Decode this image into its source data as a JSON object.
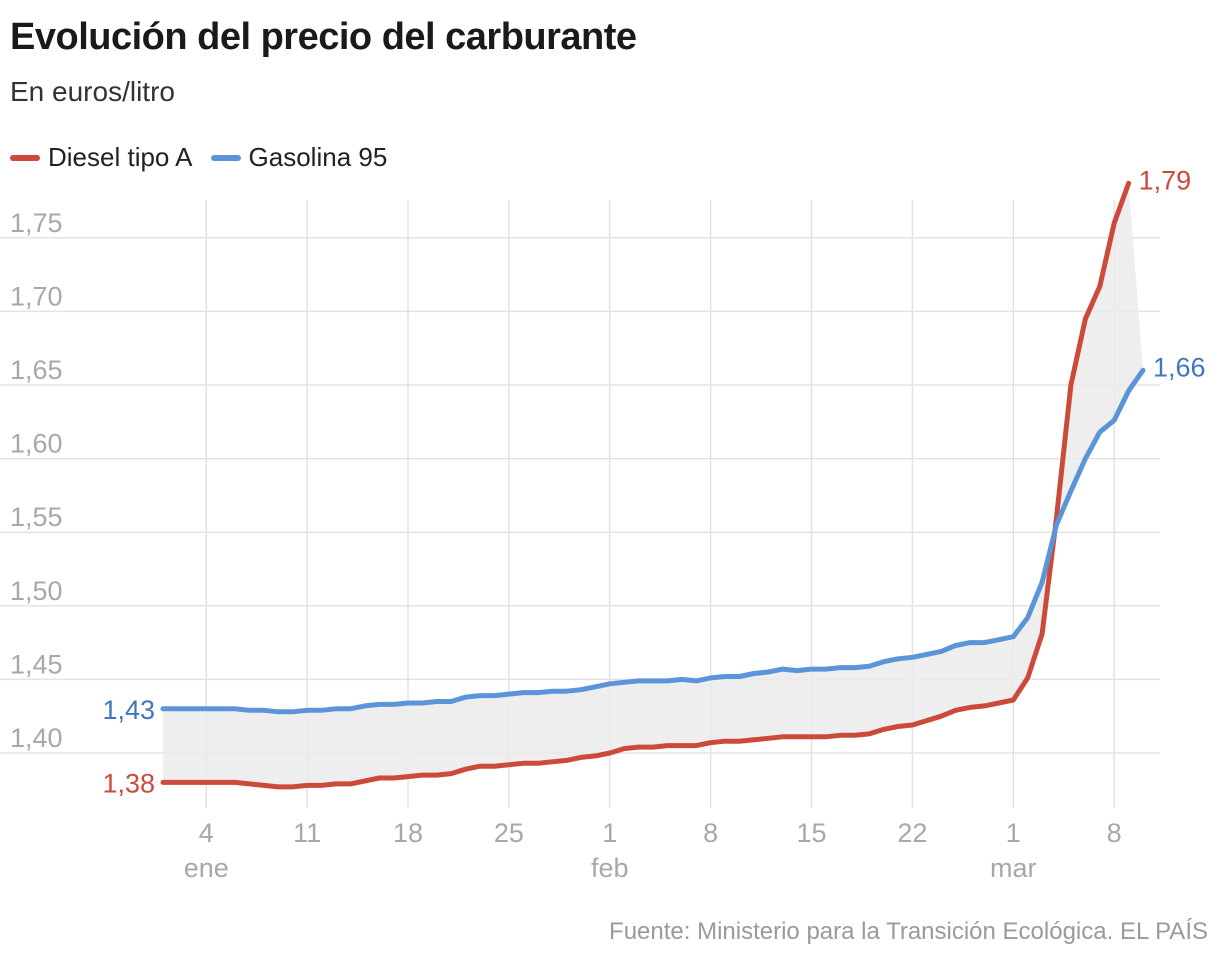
{
  "title": "Evolución del precio del carburante",
  "subtitle": "En euros/litro",
  "source": "Fuente: Ministerio para la Transición Ecológica. EL PAÍS",
  "chart_data": {
    "type": "line",
    "x_start": "2022-01-01",
    "x_end": "2022-03-10",
    "ylim": [
      1.37,
      1.795
    ],
    "y_ticks": [
      {
        "value": 1.4,
        "label": "1,40"
      },
      {
        "value": 1.45,
        "label": "1,45"
      },
      {
        "value": 1.5,
        "label": "1,50"
      },
      {
        "value": 1.55,
        "label": "1,55"
      },
      {
        "value": 1.6,
        "label": "1,60"
      },
      {
        "value": 1.65,
        "label": "1,65"
      },
      {
        "value": 1.7,
        "label": "1,70"
      },
      {
        "value": 1.75,
        "label": "1,75"
      }
    ],
    "x_ticks": [
      {
        "date": "2022-01-04",
        "label": "4",
        "month": "ene"
      },
      {
        "date": "2022-01-11",
        "label": "11"
      },
      {
        "date": "2022-01-18",
        "label": "18"
      },
      {
        "date": "2022-01-25",
        "label": "25"
      },
      {
        "date": "2022-02-01",
        "label": "1",
        "month": "feb"
      },
      {
        "date": "2022-02-08",
        "label": "8"
      },
      {
        "date": "2022-02-15",
        "label": "15"
      },
      {
        "date": "2022-02-22",
        "label": "22"
      },
      {
        "date": "2022-03-01",
        "label": "1",
        "month": "mar"
      },
      {
        "date": "2022-03-08",
        "label": "8"
      }
    ],
    "area_between_series": true,
    "grid": true,
    "legend_position": "top-left",
    "series": [
      {
        "name": "Diesel tipo A",
        "color": "#cc4a3c",
        "label_color": "#cc4a3c",
        "start_label": "1,38",
        "end_label": "1,79",
        "points": [
          [
            "2022-01-01",
            1.38
          ],
          [
            "2022-01-06",
            1.38
          ],
          [
            "2022-01-07",
            1.379
          ],
          [
            "2022-01-08",
            1.378
          ],
          [
            "2022-01-09",
            1.377
          ],
          [
            "2022-01-10",
            1.377
          ],
          [
            "2022-01-11",
            1.378
          ],
          [
            "2022-01-12",
            1.378
          ],
          [
            "2022-01-13",
            1.379
          ],
          [
            "2022-01-14",
            1.379
          ],
          [
            "2022-01-15",
            1.381
          ],
          [
            "2022-01-16",
            1.383
          ],
          [
            "2022-01-17",
            1.383
          ],
          [
            "2022-01-18",
            1.384
          ],
          [
            "2022-01-19",
            1.385
          ],
          [
            "2022-01-20",
            1.385
          ],
          [
            "2022-01-21",
            1.386
          ],
          [
            "2022-01-22",
            1.389
          ],
          [
            "2022-01-23",
            1.391
          ],
          [
            "2022-01-24",
            1.391
          ],
          [
            "2022-01-25",
            1.392
          ],
          [
            "2022-01-26",
            1.393
          ],
          [
            "2022-01-27",
            1.393
          ],
          [
            "2022-01-28",
            1.394
          ],
          [
            "2022-01-29",
            1.395
          ],
          [
            "2022-01-30",
            1.397
          ],
          [
            "2022-01-31",
            1.398
          ],
          [
            "2022-02-01",
            1.4
          ],
          [
            "2022-02-02",
            1.403
          ],
          [
            "2022-02-03",
            1.404
          ],
          [
            "2022-02-04",
            1.404
          ],
          [
            "2022-02-05",
            1.405
          ],
          [
            "2022-02-06",
            1.405
          ],
          [
            "2022-02-07",
            1.405
          ],
          [
            "2022-02-08",
            1.407
          ],
          [
            "2022-02-09",
            1.408
          ],
          [
            "2022-02-10",
            1.408
          ],
          [
            "2022-02-11",
            1.409
          ],
          [
            "2022-02-12",
            1.41
          ],
          [
            "2022-02-13",
            1.411
          ],
          [
            "2022-02-14",
            1.411
          ],
          [
            "2022-02-15",
            1.411
          ],
          [
            "2022-02-16",
            1.411
          ],
          [
            "2022-02-17",
            1.412
          ],
          [
            "2022-02-18",
            1.412
          ],
          [
            "2022-02-19",
            1.413
          ],
          [
            "2022-02-20",
            1.416
          ],
          [
            "2022-02-21",
            1.418
          ],
          [
            "2022-02-22",
            1.419
          ],
          [
            "2022-02-23",
            1.422
          ],
          [
            "2022-02-24",
            1.425
          ],
          [
            "2022-02-25",
            1.429
          ],
          [
            "2022-02-26",
            1.431
          ],
          [
            "2022-02-27",
            1.432
          ],
          [
            "2022-02-28",
            1.434
          ],
          [
            "2022-03-01",
            1.436
          ],
          [
            "2022-03-02",
            1.451
          ],
          [
            "2022-03-03",
            1.481
          ],
          [
            "2022-03-04",
            1.56
          ],
          [
            "2022-03-05",
            1.65
          ],
          [
            "2022-03-06",
            1.695
          ],
          [
            "2022-03-07",
            1.717
          ],
          [
            "2022-03-08",
            1.76
          ],
          [
            "2022-03-09",
            1.787
          ]
        ]
      },
      {
        "name": "Gasolina 95",
        "color": "#5b95d8",
        "label_color": "#3f76bf",
        "start_label": "1,43",
        "end_label": "1,66",
        "points": [
          [
            "2022-01-01",
            1.43
          ],
          [
            "2022-01-06",
            1.43
          ],
          [
            "2022-01-07",
            1.429
          ],
          [
            "2022-01-08",
            1.429
          ],
          [
            "2022-01-09",
            1.428
          ],
          [
            "2022-01-10",
            1.428
          ],
          [
            "2022-01-11",
            1.429
          ],
          [
            "2022-01-12",
            1.429
          ],
          [
            "2022-01-13",
            1.43
          ],
          [
            "2022-01-14",
            1.43
          ],
          [
            "2022-01-15",
            1.432
          ],
          [
            "2022-01-16",
            1.433
          ],
          [
            "2022-01-17",
            1.433
          ],
          [
            "2022-01-18",
            1.434
          ],
          [
            "2022-01-19",
            1.434
          ],
          [
            "2022-01-20",
            1.435
          ],
          [
            "2022-01-21",
            1.435
          ],
          [
            "2022-01-22",
            1.438
          ],
          [
            "2022-01-23",
            1.439
          ],
          [
            "2022-01-24",
            1.439
          ],
          [
            "2022-01-25",
            1.44
          ],
          [
            "2022-01-26",
            1.441
          ],
          [
            "2022-01-27",
            1.441
          ],
          [
            "2022-01-28",
            1.442
          ],
          [
            "2022-01-29",
            1.442
          ],
          [
            "2022-01-30",
            1.443
          ],
          [
            "2022-01-31",
            1.445
          ],
          [
            "2022-02-01",
            1.447
          ],
          [
            "2022-02-02",
            1.448
          ],
          [
            "2022-02-03",
            1.449
          ],
          [
            "2022-02-04",
            1.449
          ],
          [
            "2022-02-05",
            1.449
          ],
          [
            "2022-02-06",
            1.45
          ],
          [
            "2022-02-07",
            1.449
          ],
          [
            "2022-02-08",
            1.451
          ],
          [
            "2022-02-09",
            1.452
          ],
          [
            "2022-02-10",
            1.452
          ],
          [
            "2022-02-11",
            1.454
          ],
          [
            "2022-02-12",
            1.455
          ],
          [
            "2022-02-13",
            1.457
          ],
          [
            "2022-02-14",
            1.456
          ],
          [
            "2022-02-15",
            1.457
          ],
          [
            "2022-02-16",
            1.457
          ],
          [
            "2022-02-17",
            1.458
          ],
          [
            "2022-02-18",
            1.458
          ],
          [
            "2022-02-19",
            1.459
          ],
          [
            "2022-02-20",
            1.462
          ],
          [
            "2022-02-21",
            1.464
          ],
          [
            "2022-02-22",
            1.465
          ],
          [
            "2022-02-23",
            1.467
          ],
          [
            "2022-02-24",
            1.469
          ],
          [
            "2022-02-25",
            1.473
          ],
          [
            "2022-02-26",
            1.475
          ],
          [
            "2022-02-27",
            1.475
          ],
          [
            "2022-02-28",
            1.477
          ],
          [
            "2022-03-01",
            1.479
          ],
          [
            "2022-03-02",
            1.492
          ],
          [
            "2022-03-03",
            1.516
          ],
          [
            "2022-03-04",
            1.555
          ],
          [
            "2022-03-05",
            1.578
          ],
          [
            "2022-03-06",
            1.6
          ],
          [
            "2022-03-07",
            1.618
          ],
          [
            "2022-03-08",
            1.626
          ],
          [
            "2022-03-09",
            1.646
          ],
          [
            "2022-03-10",
            1.66
          ]
        ]
      }
    ]
  }
}
